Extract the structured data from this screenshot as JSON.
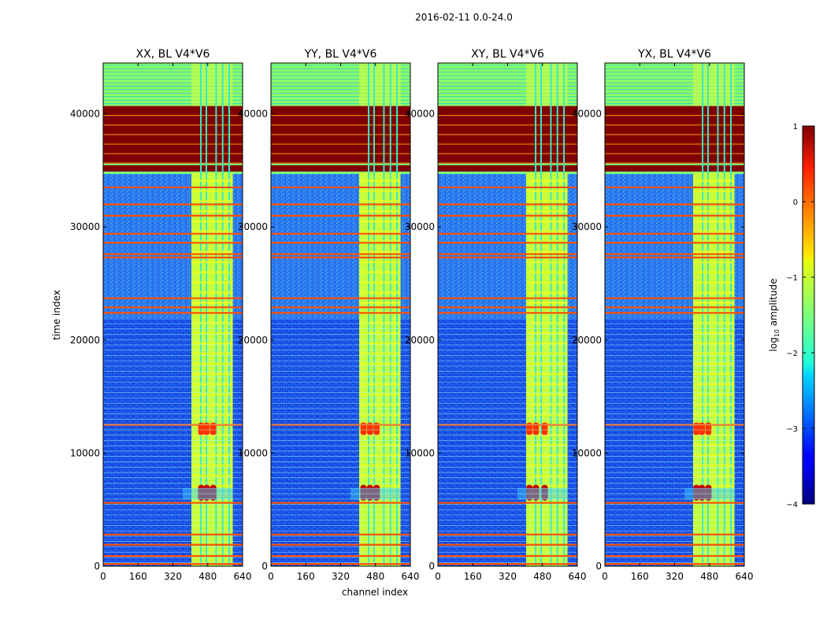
{
  "chart_data": {
    "type": "heatmap",
    "suptitle": "2016-02-11 0.0-24.0",
    "xlabel": "channel index",
    "ylabel": "time index",
    "xlim": [
      0,
      640
    ],
    "ylim": [
      0,
      44500
    ],
    "xticks": [
      0,
      160,
      320,
      480,
      640
    ],
    "yticks": [
      0,
      10000,
      20000,
      30000,
      40000
    ],
    "panels": [
      {
        "title": "XX, BL V4*V6",
        "hot_cols_peak": [
          450,
          475,
          505
        ]
      },
      {
        "title": "YY, BL V4*V6",
        "hot_cols_peak": [
          425,
          455,
          485
        ]
      },
      {
        "title": "XY, BL V4*V6",
        "hot_cols_peak": [
          420,
          450,
          490
        ]
      },
      {
        "title": "YX, BL V4*V6",
        "hot_cols_peak": [
          420,
          445,
          475
        ]
      }
    ],
    "rfi_band_channels": [
      405,
      595
    ],
    "saturated_time_range": [
      34800,
      40700
    ],
    "green_top_range": [
      40700,
      44500
    ],
    "bright_rows": [
      200,
      900,
      1900,
      2800,
      5600,
      12500,
      22400,
      22900,
      23700,
      27300,
      27600,
      28600,
      29400,
      31000,
      32000,
      33500
    ],
    "colorbar": {
      "label_prefix": "log",
      "label_sub": "10",
      "label_suffix": " amplitude",
      "range": [
        -4,
        1
      ],
      "ticks": [
        "1",
        "0",
        "−1",
        "−2",
        "−3",
        "−4"
      ]
    }
  }
}
